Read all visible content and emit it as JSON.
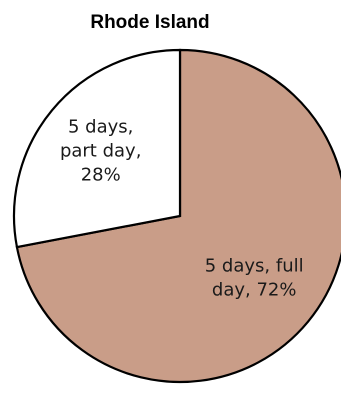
{
  "chart_data": {
    "type": "pie",
    "title": "Rhode Island",
    "slices": [
      {
        "label_lines": [
          "5 days, full",
          "day, 72%"
        ],
        "category": "5 days, full day",
        "value": 72,
        "color": "#c99d88"
      },
      {
        "label_lines": [
          "5 days,",
          "part day,",
          "28%"
        ],
        "category": "5 days, part day",
        "value": 28,
        "color": "#ffffff"
      }
    ],
    "start_angle_degrees": 0,
    "direction": "clockwise",
    "border_color": "#000000"
  }
}
